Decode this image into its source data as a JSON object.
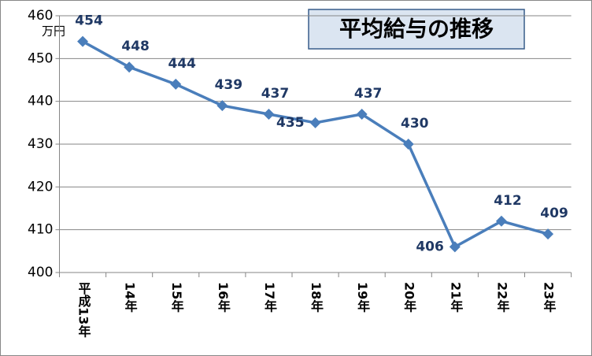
{
  "chart_data": {
    "type": "line",
    "title": "平均給与の推移",
    "y_unit": "万円",
    "categories": [
      "平成13年",
      "14年",
      "15年",
      "16年",
      "17年",
      "18年",
      "19年",
      "20年",
      "21年",
      "22年",
      "23年"
    ],
    "values": [
      454,
      448,
      444,
      439,
      437,
      435,
      437,
      430,
      406,
      412,
      409
    ],
    "color": "#4a7ebb",
    "ylim": [
      400,
      460
    ],
    "yticks": [
      400,
      410,
      420,
      430,
      440,
      450,
      460
    ],
    "grid": true
  }
}
